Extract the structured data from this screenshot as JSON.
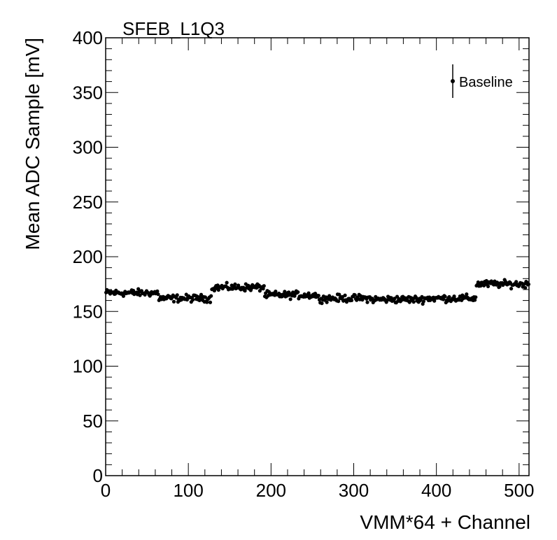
{
  "chart_data": {
    "type": "scatter",
    "title": "SFEB_L1Q3",
    "xlabel": "VMM*64 + Channel",
    "ylabel": "Mean ADC Sample [mV]",
    "xlim": [
      0,
      512
    ],
    "ylim": [
      0,
      400
    ],
    "x_ticks": [
      0,
      100,
      200,
      300,
      400,
      500
    ],
    "y_ticks": [
      0,
      50,
      100,
      150,
      200,
      250,
      300,
      350,
      400
    ],
    "legend": {
      "label": "Baseline",
      "position": "top-right"
    },
    "series": [
      {
        "name": "Baseline",
        "color": "#000000",
        "segments": [
          {
            "x_start": 0,
            "x_end": 63,
            "level": 167
          },
          {
            "x_start": 64,
            "x_end": 127,
            "level": 162
          },
          {
            "x_start": 128,
            "x_end": 191,
            "level": 172
          },
          {
            "x_start": 192,
            "x_end": 255,
            "level": 165
          },
          {
            "x_start": 256,
            "x_end": 319,
            "level": 162
          },
          {
            "x_start": 320,
            "x_end": 383,
            "level": 161
          },
          {
            "x_start": 384,
            "x_end": 447,
            "level": 162
          },
          {
            "x_start": 448,
            "x_end": 511,
            "level": 175
          }
        ],
        "scatter_mv": 3
      }
    ]
  }
}
